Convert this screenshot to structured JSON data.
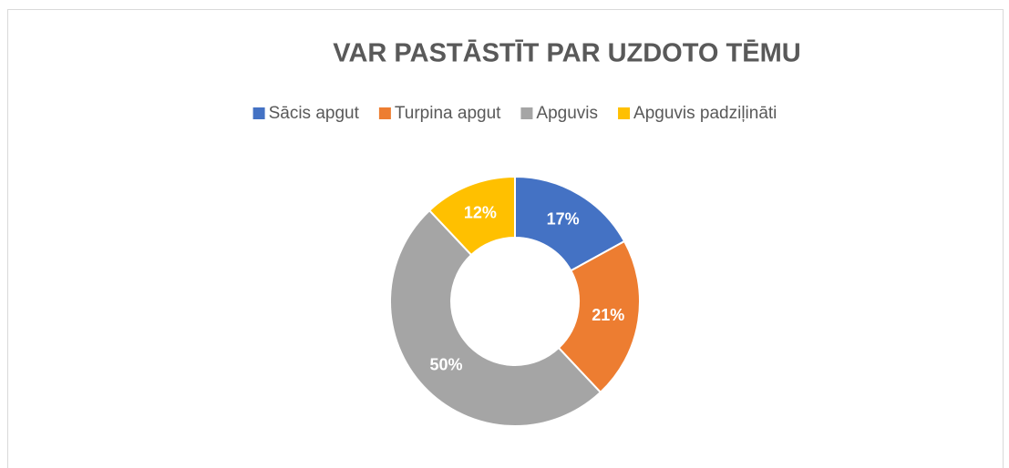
{
  "chart_data": {
    "type": "donut",
    "title": "VAR PASTĀSTĪT PAR UZDOTO TĒMU",
    "categories": [
      "Sācis apgut",
      "Turpina apgut",
      "Apguvis",
      "Apguvis padziļināti"
    ],
    "values": [
      17,
      21,
      50,
      12
    ],
    "value_labels": [
      "17%",
      "21%",
      "50%",
      "12%"
    ],
    "colors": [
      "#4472c4",
      "#ed7d31",
      "#a5a5a5",
      "#ffc000"
    ],
    "legend": "top"
  }
}
